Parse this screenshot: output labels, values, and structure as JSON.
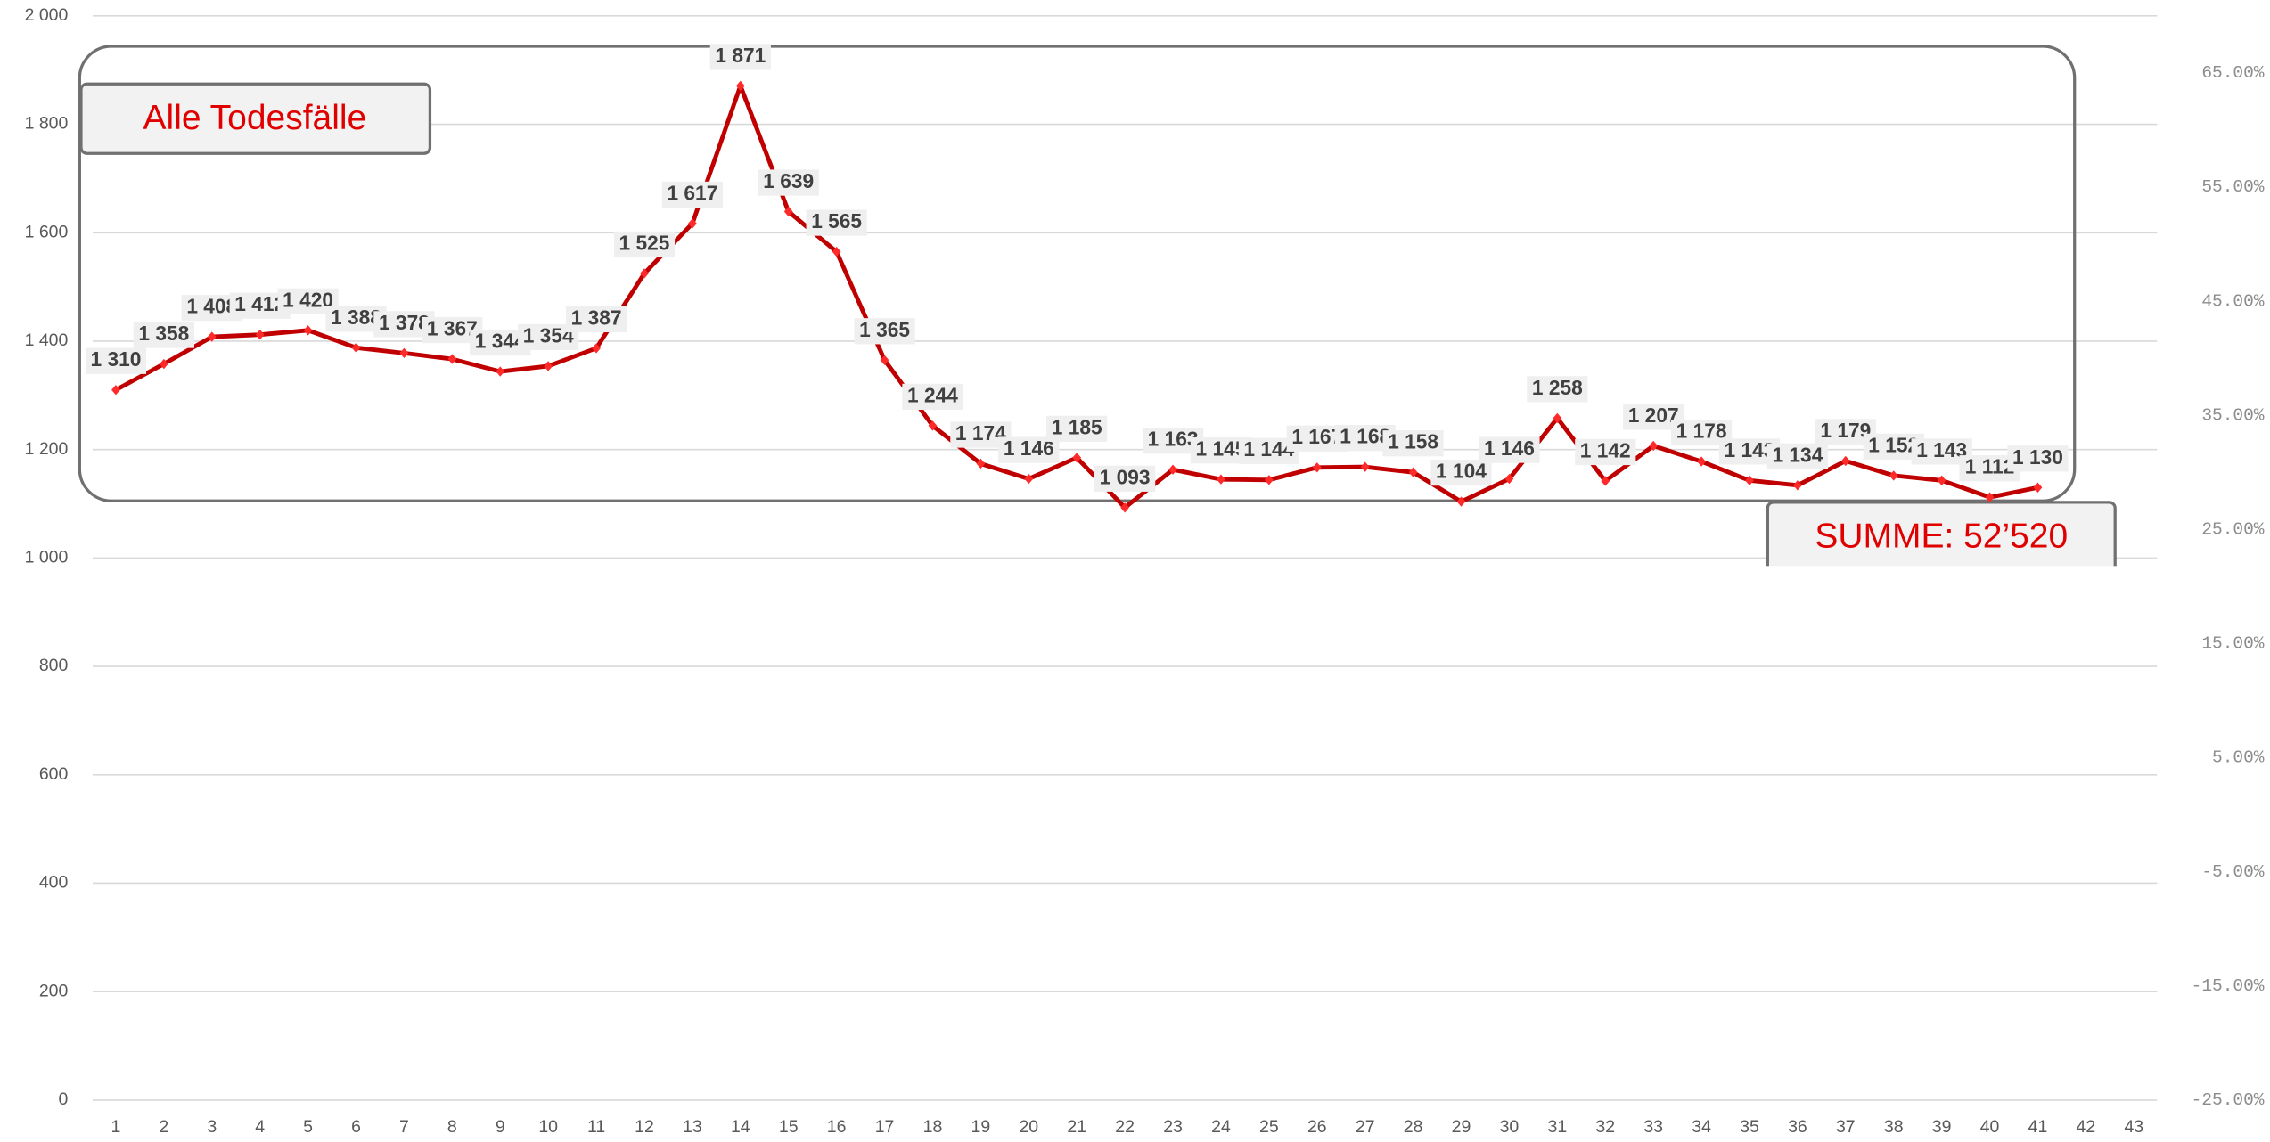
{
  "chart_data": {
    "type": "line",
    "annotations": [
      "Alle Todesfälle",
      "SUMME: 52’520"
    ],
    "categories": [
      "1",
      "2",
      "3",
      "4",
      "5",
      "6",
      "7",
      "8",
      "9",
      "10",
      "11",
      "12",
      "13",
      "14",
      "15",
      "16",
      "17",
      "18",
      "19",
      "20",
      "21",
      "22",
      "23",
      "24",
      "25",
      "26",
      "27",
      "28",
      "29",
      "30",
      "31",
      "32",
      "33",
      "34",
      "35",
      "36",
      "37",
      "38",
      "39",
      "40",
      "41",
      "42",
      "43"
    ],
    "series": [
      {
        "color": "#c00000",
        "values": [
          1310,
          1358,
          1408,
          1412,
          1420,
          1388,
          1378,
          1367,
          1344,
          1354,
          1387,
          1525,
          1617,
          1871,
          1639,
          1565,
          1365,
          1244,
          1174,
          1146,
          1185,
          1093,
          1163,
          1145,
          1144,
          1167,
          1168,
          1158,
          1104,
          1146,
          1258,
          1142,
          1207,
          1178,
          1143,
          1134,
          1179,
          1152,
          1143,
          1112,
          1130,
          null,
          null
        ],
        "value_labels": [
          "1 310",
          "1 358",
          "1 408",
          "1 412",
          "1 420",
          "1 388",
          "1 378",
          "1 367",
          "1 344",
          "1 354",
          "1 387",
          "1 525",
          "1 617",
          "1 871",
          "1 639",
          "1 565",
          "1 365",
          "1 244",
          "1 174",
          "1 146",
          "1 185",
          "1 093",
          "1 163",
          "1 145",
          "1 144",
          "1 167",
          "1 168",
          "1 158",
          "1 104",
          "1 146",
          "1 258",
          "1 142",
          "1 207",
          "1 178",
          "1 143",
          "1 134",
          "1 179",
          "1 152",
          "1 143",
          "1 112",
          "1 130",
          null,
          null
        ]
      }
    ],
    "ylim": [
      0,
      2000
    ],
    "yticks": [
      0,
      200,
      400,
      600,
      800,
      {
        "value": 1000,
        "label": "1 000"
      },
      {
        "value": 1200,
        "label": "1 200"
      },
      {
        "value": 1400,
        "label": "1 400"
      },
      {
        "value": 1600,
        "label": "1 600"
      },
      {
        "value": 1800,
        "label": "1 800"
      },
      {
        "value": 2000,
        "label": "2 000"
      }
    ],
    "y2lim": [
      -25,
      70
    ],
    "y2ticks": [
      {
        "value": -25,
        "label": "-25.00%"
      },
      {
        "value": -15,
        "label": "-15.00%"
      },
      {
        "value": -5,
        "label": "-5.00%"
      },
      {
        "value": 5,
        "label": "5.00%"
      },
      {
        "value": 15,
        "label": "15.00%"
      },
      {
        "value": 25,
        "label": "25.00%"
      },
      {
        "value": 35,
        "label": "35.00%"
      },
      {
        "value": 45,
        "label": "45.00%"
      },
      {
        "value": 55,
        "label": "55.00%"
      },
      {
        "value": 65,
        "label": "65.00%"
      }
    ],
    "grid": true
  }
}
